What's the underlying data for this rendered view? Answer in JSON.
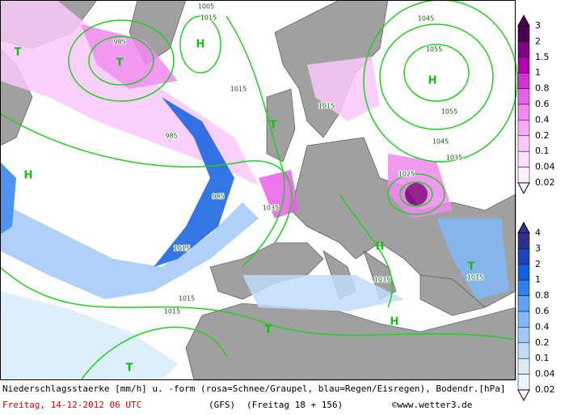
{
  "map": {
    "labels": [
      "H",
      "H",
      "H",
      "H",
      "H",
      "T",
      "T",
      "T",
      "T",
      "T",
      "T",
      "1005",
      "1015",
      "1045",
      "1055",
      "985",
      "985",
      "985",
      "1015",
      "1015",
      "1015",
      "1015",
      "1015",
      "1025",
      "1035",
      "1035",
      "1045",
      "1035",
      "1015",
      "1055"
    ],
    "legend_snow": {
      "labels": [
        "3",
        "2",
        "1.5",
        "1",
        "0.8",
        "0.6",
        "0.4",
        "0.2",
        "0.1",
        "0.04",
        "0.02"
      ],
      "colors": [
        "#4a0050",
        "#800080",
        "#b000b0",
        "#d830d8",
        "#e860e8",
        "#f088f0",
        "#f8aaf8",
        "#fbc8fb",
        "#fde0fd",
        "#fff0ff"
      ]
    },
    "legend_rain": {
      "labels": [
        "4",
        "3",
        "2",
        "1",
        "0.8",
        "0.6",
        "0.4",
        "0.2",
        "0.1",
        "0.04",
        "0.02"
      ],
      "colors": [
        "#303090",
        "#2040c0",
        "#1060e0",
        "#3080f0",
        "#60a0f8",
        "#80b8f8",
        "#a0c8f8",
        "#c0dcf8",
        "#d8ecfc",
        "#eaf5fe"
      ]
    }
  },
  "caption": {
    "line1": "Niederschlagsstaerke [mm/h] u. -form (rosa=Schnee/Graupel, blau=Regen/Eisregen), Bodendr.[hPa]",
    "date": "Freitag, 14-12-2012  06 UTC",
    "model": "(GFS)",
    "run": "(Freitag 18 + 156)",
    "credit": "©www.wetter3.de"
  }
}
